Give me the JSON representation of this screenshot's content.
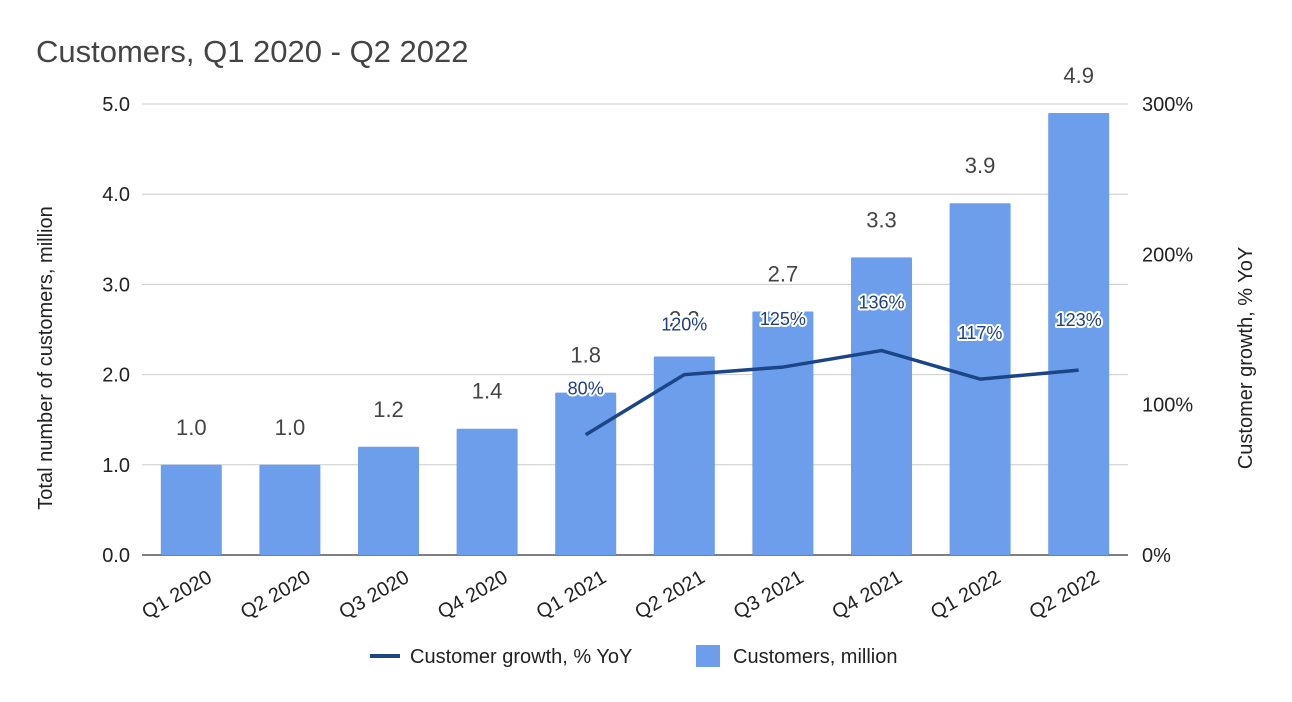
{
  "chart_data": {
    "type": "bar",
    "title": "Customers, Q1 2020 - Q2 2022",
    "categories": [
      "Q1 2020",
      "Q2 2020",
      "Q3 2020",
      "Q4 2020",
      "Q1 2021",
      "Q2 2021",
      "Q3 2021",
      "Q4 2021",
      "Q1 2022",
      "Q2 2022"
    ],
    "series": [
      {
        "name": "Customers, million",
        "type": "bar",
        "axis": "left",
        "color": "#6d9eeb",
        "values": [
          1.0,
          1.0,
          1.2,
          1.4,
          1.8,
          2.2,
          2.7,
          3.3,
          3.9,
          4.9
        ],
        "labels": [
          "1.0",
          "1.0",
          "1.2",
          "1.4",
          "1.8",
          "2.2",
          "2.7",
          "3.3",
          "3.9",
          "4.9"
        ]
      },
      {
        "name": "Customer growth, % YoY",
        "type": "line",
        "axis": "right",
        "color": "#1c4587",
        "values": [
          null,
          null,
          null,
          null,
          80,
          120,
          125,
          136,
          117,
          123
        ],
        "labels": [
          "",
          "",
          "",
          "",
          "80%",
          "120%",
          "125%",
          "136%",
          "117%",
          "123%"
        ]
      }
    ],
    "ylabel": "Total number of customers, million",
    "ylim": [
      0,
      5
    ],
    "yticks": [
      "0.0",
      "1.0",
      "2.0",
      "3.0",
      "4.0",
      "5.0"
    ],
    "ylabel_right": "Customer growth, % YoY",
    "ylim_right": [
      0,
      300
    ],
    "yticks_right": [
      "0%",
      "100%",
      "200%",
      "300%"
    ],
    "legend": [
      "Customer growth, % YoY",
      "Customers, million"
    ],
    "legend_position": "bottom",
    "grid": true
  }
}
